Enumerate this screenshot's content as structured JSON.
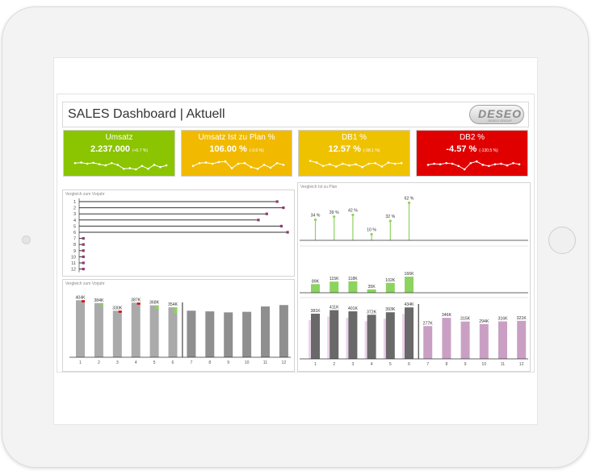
{
  "dashboard": {
    "title": "SALES Dashboard | Aktuell",
    "logo": "DESEO",
    "logo_subtext": "DESEO GROUP"
  },
  "kpis": [
    {
      "label": "Umsatz",
      "value": "2.237.000",
      "delta": "(+6.7 %)",
      "color": "#8bc400",
      "trend": [
        0.55,
        0.6,
        0.5,
        0.58,
        0.45,
        0.35,
        0.55,
        0.4,
        0.05,
        0.1,
        0.0,
        0.3,
        0.05,
        0.4,
        0.2,
        0.35
      ]
    },
    {
      "label": "Umsatz Ist zu Plan %",
      "value": "106.00 %",
      "delta": "(-3.6 %)",
      "color": "#f1ba00",
      "trend": [
        0.3,
        0.55,
        0.6,
        0.5,
        0.65,
        0.7,
        0.1,
        0.5,
        0.55,
        0.2,
        0.05,
        0.4,
        0.15,
        0.55,
        0.4
      ]
    },
    {
      "label": "DB1 %",
      "value": "12.57 %",
      "delta": "(-58.1 %)",
      "color": "#efc200",
      "trend": [
        0.75,
        0.6,
        0.3,
        0.45,
        0.25,
        0.5,
        0.35,
        0.45,
        0.2,
        0.5,
        0.55,
        0.25,
        0.6,
        0.5,
        0.55
      ]
    },
    {
      "label": "DB2 %",
      "value": "-4.57 %",
      "delta": "(-130.5 %)",
      "color": "#e00000",
      "trend": [
        0.4,
        0.5,
        0.45,
        0.55,
        0.5,
        0.3,
        0.0,
        0.55,
        0.7,
        0.4,
        0.3,
        0.45,
        0.5,
        0.35,
        0.55,
        0.45
      ]
    }
  ],
  "panels": {
    "vorjahr_title_top": "Vergleich zum Vorjahr",
    "vorjahr_title_bottom": "Vergleich zum Vorjahr",
    "plan_title": "Vergleich Ist zu Plan"
  },
  "chart_data": [
    {
      "type": "bar",
      "title": "Vergleich zum Vorjahr",
      "orientation": "horizontal",
      "categories": [
        "1",
        "2",
        "3",
        "4",
        "5",
        "6",
        "7",
        "8",
        "9",
        "10",
        "11",
        "12"
      ],
      "values": [
        95,
        98,
        90,
        86,
        97,
        100,
        2,
        2,
        2,
        2,
        2,
        2
      ],
      "colors": {
        "bar": "#333333",
        "marker": "#8e3b72"
      }
    },
    {
      "type": "bar",
      "title": "Vergleich zum Vorjahr",
      "categories": [
        "1",
        "2",
        "3",
        "4",
        "5",
        "6",
        "7",
        "8",
        "9",
        "10",
        "11",
        "12"
      ],
      "series": [
        {
          "values": [
            404,
            384,
            330,
            387,
            368,
            354,
            330,
            325,
            318,
            322,
            360,
            370
          ]
        }
      ],
      "labels": [
        "404K",
        "384K",
        "330K",
        "387K",
        "368K",
        "354K",
        "",
        "",
        "",
        "",
        "",
        ""
      ],
      "delta": [
        -12,
        14,
        -15,
        -8,
        26,
        44,
        0,
        0,
        0,
        0,
        0,
        0
      ],
      "colors": {
        "actual": "#aaaaaa",
        "forecast": "#8f8f8f",
        "positive": "#8cd35f",
        "negative": "#e00000"
      }
    },
    {
      "type": "bar",
      "title": "Vergleich Ist zu Plan",
      "categories": [
        "1",
        "2",
        "3",
        "4",
        "5",
        "6",
        "7",
        "8",
        "9",
        "10",
        "11",
        "12"
      ],
      "percent_labels": [
        "34 %",
        "39 %",
        "42 %",
        "10 %",
        "32 %",
        "62 %",
        "",
        "",
        "",
        "",
        "",
        ""
      ],
      "percent_values": [
        34,
        39,
        42,
        10,
        32,
        62,
        0,
        0,
        0,
        0,
        0,
        0
      ],
      "abs_labels": [
        "89K",
        "115K",
        "118K",
        "35K",
        "102K",
        "166K",
        "",
        "",
        "",
        "",
        "",
        ""
      ],
      "abs_values": [
        89,
        115,
        118,
        35,
        102,
        166,
        0,
        0,
        0,
        0,
        0,
        0
      ],
      "actual_labels": [
        "381K",
        "411K",
        "401K",
        "372K",
        "393K",
        "434K",
        "277K",
        "346K",
        "315K",
        "294K",
        "316K",
        "321K"
      ],
      "actual_values": [
        381,
        411,
        401,
        372,
        393,
        434,
        277,
        346,
        315,
        294,
        316,
        321
      ],
      "colors": {
        "plan_line": "#8cd35f",
        "actual": "#696969",
        "forecast": "#c9a0c4",
        "plan_backdrop": "#ebd3e8"
      }
    }
  ]
}
